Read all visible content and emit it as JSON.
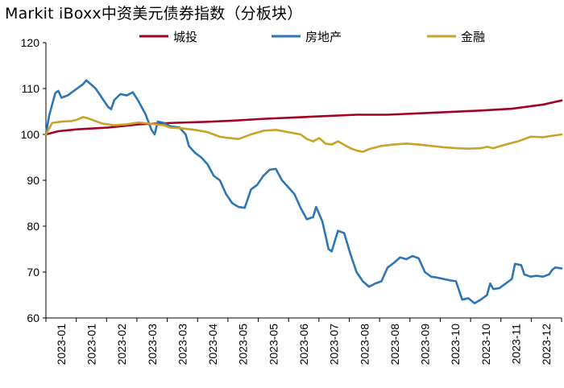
{
  "chart_data": {
    "type": "line",
    "title": "Markit iBoxx中资美元债券指数（分板块）",
    "ylim": [
      60,
      120
    ],
    "yticks": [
      60,
      70,
      80,
      90,
      100,
      110,
      120
    ],
    "xticks": [
      "2023-01",
      "2023-01",
      "2023-02",
      "2023-03",
      "2023-03",
      "2023-04",
      "2023-05",
      "2023-05",
      "2023-06",
      "2023-07",
      "2023-08",
      "2023-08",
      "2023-09",
      "2023-10",
      "2023-10",
      "2023-11",
      "2023-12"
    ],
    "grid": false,
    "legend_position": "top",
    "series": [
      {
        "name": "城投",
        "color": "#A50021",
        "points": [
          [
            0,
            100.0
          ],
          [
            4,
            100.7
          ],
          [
            10,
            101.1
          ],
          [
            20,
            101.5
          ],
          [
            30,
            102.2
          ],
          [
            40,
            102.5
          ],
          [
            50,
            102.7
          ],
          [
            60,
            103.0
          ],
          [
            70,
            103.4
          ],
          [
            80,
            103.7
          ],
          [
            90,
            104.0
          ],
          [
            100,
            104.3
          ],
          [
            110,
            104.3
          ],
          [
            120,
            104.6
          ],
          [
            130,
            104.9
          ],
          [
            140,
            105.2
          ],
          [
            150,
            105.6
          ],
          [
            160,
            106.5
          ],
          [
            166,
            107.4
          ]
        ]
      },
      {
        "name": "房地产",
        "color": "#2E75B6",
        "points": [
          [
            0,
            100.0
          ],
          [
            1,
            104.0
          ],
          [
            3,
            109.0
          ],
          [
            4,
            109.5
          ],
          [
            5,
            108.0
          ],
          [
            7,
            108.5
          ],
          [
            10,
            110.0
          ],
          [
            12,
            111.0
          ],
          [
            13,
            111.8
          ],
          [
            14,
            111.2
          ],
          [
            16,
            110.0
          ],
          [
            18,
            108.0
          ],
          [
            20,
            106.0
          ],
          [
            21,
            105.5
          ],
          [
            22,
            107.5
          ],
          [
            24,
            108.8
          ],
          [
            26,
            108.5
          ],
          [
            28,
            109.2
          ],
          [
            30,
            107.0
          ],
          [
            32,
            104.5
          ],
          [
            34,
            101.0
          ],
          [
            35,
            100.0
          ],
          [
            36,
            102.8
          ],
          [
            38,
            102.5
          ],
          [
            40,
            101.8
          ],
          [
            43,
            101.5
          ],
          [
            45,
            100.0
          ],
          [
            46,
            97.5
          ],
          [
            48,
            96.0
          ],
          [
            50,
            95.0
          ],
          [
            52,
            93.5
          ],
          [
            54,
            91.0
          ],
          [
            56,
            90.0
          ],
          [
            58,
            87.0
          ],
          [
            60,
            85.0
          ],
          [
            62,
            84.2
          ],
          [
            64,
            84.0
          ],
          [
            66,
            88.0
          ],
          [
            68,
            89.0
          ],
          [
            70,
            91.0
          ],
          [
            72,
            92.3
          ],
          [
            74,
            92.5
          ],
          [
            76,
            90.0
          ],
          [
            78,
            88.5
          ],
          [
            80,
            87.0
          ],
          [
            82,
            84.0
          ],
          [
            84,
            81.5
          ],
          [
            86,
            82.0
          ],
          [
            87,
            84.2
          ],
          [
            89,
            81.0
          ],
          [
            91,
            75.0
          ],
          [
            92,
            74.5
          ],
          [
            94,
            79.0
          ],
          [
            96,
            78.5
          ],
          [
            98,
            74.0
          ],
          [
            100,
            70.0
          ],
          [
            102,
            68.0
          ],
          [
            104,
            66.8
          ],
          [
            106,
            67.5
          ],
          [
            108,
            68.0
          ],
          [
            110,
            71.0
          ],
          [
            112,
            72.0
          ],
          [
            114,
            73.2
          ],
          [
            116,
            72.8
          ],
          [
            118,
            73.5
          ],
          [
            120,
            73.0
          ],
          [
            122,
            70.0
          ],
          [
            124,
            69.0
          ],
          [
            126,
            68.8
          ],
          [
            128,
            68.5
          ],
          [
            130,
            68.2
          ],
          [
            132,
            68.0
          ],
          [
            133,
            66.0
          ],
          [
            134,
            64.0
          ],
          [
            136,
            64.3
          ],
          [
            138,
            63.2
          ],
          [
            140,
            64.0
          ],
          [
            142,
            65.0
          ],
          [
            143,
            67.5
          ],
          [
            144,
            66.3
          ],
          [
            146,
            66.5
          ],
          [
            148,
            67.5
          ],
          [
            150,
            68.5
          ],
          [
            151,
            71.8
          ],
          [
            153,
            71.5
          ],
          [
            154,
            69.5
          ],
          [
            156,
            69.0
          ],
          [
            158,
            69.2
          ],
          [
            160,
            69.0
          ],
          [
            162,
            69.5
          ],
          [
            163,
            70.5
          ],
          [
            164,
            71.0
          ],
          [
            166,
            70.8
          ]
        ]
      },
      {
        "name": "金融",
        "color": "#C9A227",
        "points": [
          [
            0,
            100.0
          ],
          [
            2,
            102.5
          ],
          [
            5,
            102.8
          ],
          [
            8,
            102.9
          ],
          [
            10,
            103.2
          ],
          [
            12,
            103.8
          ],
          [
            14,
            103.4
          ],
          [
            18,
            102.4
          ],
          [
            22,
            102.0
          ],
          [
            26,
            102.2
          ],
          [
            30,
            102.6
          ],
          [
            34,
            102.3
          ],
          [
            38,
            102.0
          ],
          [
            40,
            101.5
          ],
          [
            44,
            101.3
          ],
          [
            48,
            101.0
          ],
          [
            52,
            100.5
          ],
          [
            56,
            99.5
          ],
          [
            58,
            99.3
          ],
          [
            62,
            99.0
          ],
          [
            66,
            100.0
          ],
          [
            70,
            100.8
          ],
          [
            74,
            101.0
          ],
          [
            78,
            100.5
          ],
          [
            82,
            100.0
          ],
          [
            84,
            99.0
          ],
          [
            86,
            98.5
          ],
          [
            88,
            99.2
          ],
          [
            90,
            98.0
          ],
          [
            92,
            97.8
          ],
          [
            94,
            98.5
          ],
          [
            98,
            97.0
          ],
          [
            100,
            96.5
          ],
          [
            102,
            96.2
          ],
          [
            104,
            96.8
          ],
          [
            108,
            97.5
          ],
          [
            112,
            97.8
          ],
          [
            116,
            98.0
          ],
          [
            120,
            97.8
          ],
          [
            124,
            97.5
          ],
          [
            128,
            97.2
          ],
          [
            132,
            97.0
          ],
          [
            136,
            96.9
          ],
          [
            140,
            97.0
          ],
          [
            142,
            97.3
          ],
          [
            144,
            97.0
          ],
          [
            148,
            97.8
          ],
          [
            152,
            98.5
          ],
          [
            156,
            99.5
          ],
          [
            160,
            99.4
          ],
          [
            164,
            99.8
          ],
          [
            166,
            100.0
          ]
        ]
      }
    ]
  }
}
